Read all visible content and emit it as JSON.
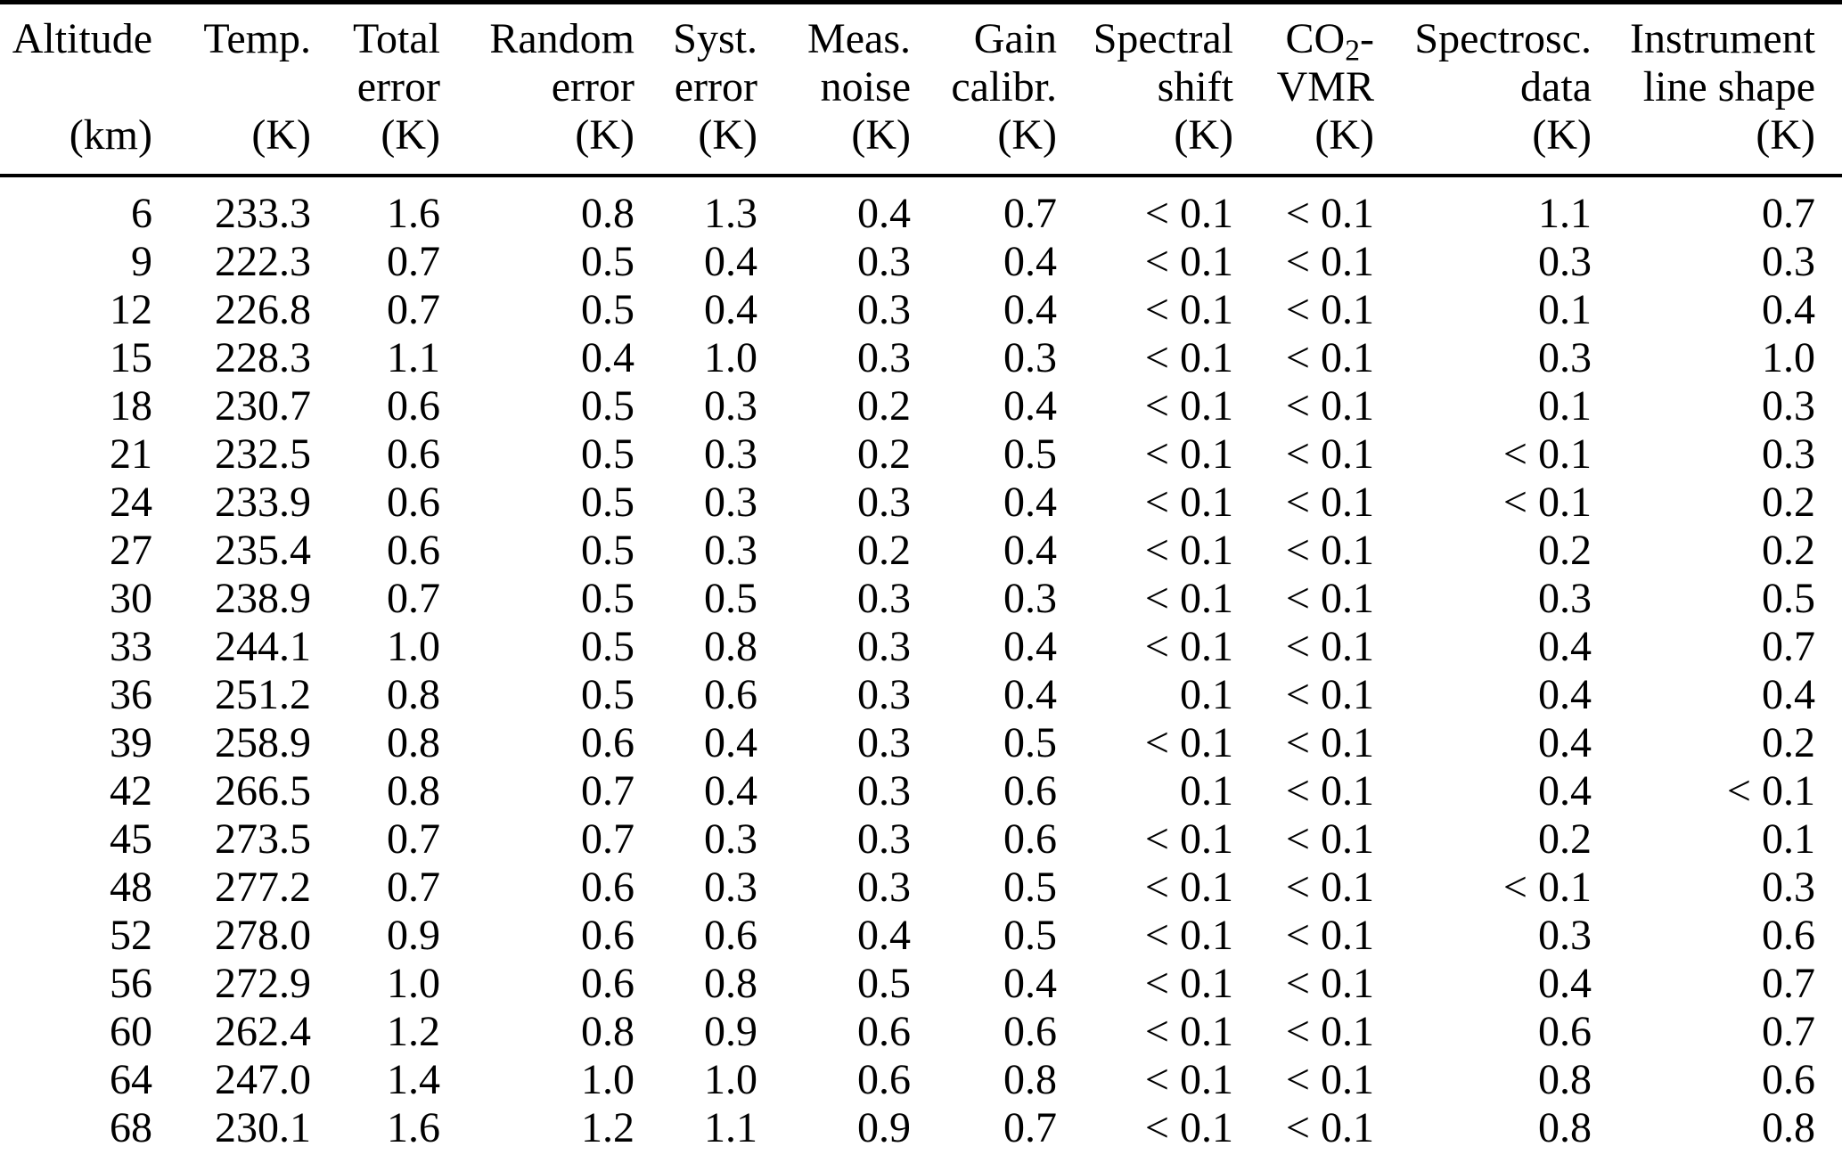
{
  "page": {
    "background_color": "#ffffff",
    "text_color": "#000000",
    "rule_color": "#000000"
  },
  "table": {
    "columns": [
      {
        "id": "altitude",
        "line1": "Altitude",
        "line2": "",
        "line3": "(km)"
      },
      {
        "id": "temp",
        "line1": "Temp.",
        "line2": "",
        "line3": "(K)"
      },
      {
        "id": "total-error",
        "line1": "Total",
        "line2": "error",
        "line3": "(K)"
      },
      {
        "id": "random-error",
        "line1": "Random",
        "line2": "error",
        "line3": "(K)"
      },
      {
        "id": "syst-error",
        "line1": "Syst.",
        "line2": "error",
        "line3": "(K)"
      },
      {
        "id": "meas-noise",
        "line1": "Meas.",
        "line2": "noise",
        "line3": "(K)"
      },
      {
        "id": "gain-calibr",
        "line1": "Gain",
        "line2": "calibr.",
        "line3": "(K)"
      },
      {
        "id": "spectral-shift",
        "line1": "Spectral",
        "line2": "shift",
        "line3": "(K)"
      },
      {
        "id": "co2-vmr",
        "line1_pre": "CO",
        "line1_sub": "2",
        "line1_post": "-",
        "line2": "VMR",
        "line3": "(K)"
      },
      {
        "id": "spectrosc-data",
        "line1": "Spectrosc.",
        "line2": "data",
        "line3": "(K)"
      },
      {
        "id": "instrument-line-shape",
        "line1": "Instrument",
        "line2": "line shape",
        "line3": "(K)"
      }
    ],
    "rows": [
      [
        "6",
        "233.3",
        "1.6",
        "0.8",
        "1.3",
        "0.4",
        "0.7",
        "< 0.1",
        "< 0.1",
        "1.1",
        "0.7"
      ],
      [
        "9",
        "222.3",
        "0.7",
        "0.5",
        "0.4",
        "0.3",
        "0.4",
        "< 0.1",
        "< 0.1",
        "0.3",
        "0.3"
      ],
      [
        "12",
        "226.8",
        "0.7",
        "0.5",
        "0.4",
        "0.3",
        "0.4",
        "< 0.1",
        "< 0.1",
        "0.1",
        "0.4"
      ],
      [
        "15",
        "228.3",
        "1.1",
        "0.4",
        "1.0",
        "0.3",
        "0.3",
        "< 0.1",
        "< 0.1",
        "0.3",
        "1.0"
      ],
      [
        "18",
        "230.7",
        "0.6",
        "0.5",
        "0.3",
        "0.2",
        "0.4",
        "< 0.1",
        "< 0.1",
        "0.1",
        "0.3"
      ],
      [
        "21",
        "232.5",
        "0.6",
        "0.5",
        "0.3",
        "0.2",
        "0.5",
        "< 0.1",
        "< 0.1",
        "< 0.1",
        "0.3"
      ],
      [
        "24",
        "233.9",
        "0.6",
        "0.5",
        "0.3",
        "0.3",
        "0.4",
        "< 0.1",
        "< 0.1",
        "< 0.1",
        "0.2"
      ],
      [
        "27",
        "235.4",
        "0.6",
        "0.5",
        "0.3",
        "0.2",
        "0.4",
        "< 0.1",
        "< 0.1",
        "0.2",
        "0.2"
      ],
      [
        "30",
        "238.9",
        "0.7",
        "0.5",
        "0.5",
        "0.3",
        "0.3",
        "< 0.1",
        "< 0.1",
        "0.3",
        "0.5"
      ],
      [
        "33",
        "244.1",
        "1.0",
        "0.5",
        "0.8",
        "0.3",
        "0.4",
        "< 0.1",
        "< 0.1",
        "0.4",
        "0.7"
      ],
      [
        "36",
        "251.2",
        "0.8",
        "0.5",
        "0.6",
        "0.3",
        "0.4",
        "0.1",
        "< 0.1",
        "0.4",
        "0.4"
      ],
      [
        "39",
        "258.9",
        "0.8",
        "0.6",
        "0.4",
        "0.3",
        "0.5",
        "< 0.1",
        "< 0.1",
        "0.4",
        "0.2"
      ],
      [
        "42",
        "266.5",
        "0.8",
        "0.7",
        "0.4",
        "0.3",
        "0.6",
        "0.1",
        "< 0.1",
        "0.4",
        "< 0.1"
      ],
      [
        "45",
        "273.5",
        "0.7",
        "0.7",
        "0.3",
        "0.3",
        "0.6",
        "< 0.1",
        "< 0.1",
        "0.2",
        "0.1"
      ],
      [
        "48",
        "277.2",
        "0.7",
        "0.6",
        "0.3",
        "0.3",
        "0.5",
        "< 0.1",
        "< 0.1",
        "< 0.1",
        "0.3"
      ],
      [
        "52",
        "278.0",
        "0.9",
        "0.6",
        "0.6",
        "0.4",
        "0.5",
        "< 0.1",
        "< 0.1",
        "0.3",
        "0.6"
      ],
      [
        "56",
        "272.9",
        "1.0",
        "0.6",
        "0.8",
        "0.5",
        "0.4",
        "< 0.1",
        "< 0.1",
        "0.4",
        "0.7"
      ],
      [
        "60",
        "262.4",
        "1.2",
        "0.8",
        "0.9",
        "0.6",
        "0.6",
        "< 0.1",
        "< 0.1",
        "0.6",
        "0.7"
      ],
      [
        "64",
        "247.0",
        "1.4",
        "1.0",
        "1.0",
        "0.6",
        "0.8",
        "< 0.1",
        "< 0.1",
        "0.8",
        "0.6"
      ],
      [
        "68",
        "230.1",
        "1.6",
        "1.2",
        "1.1",
        "0.9",
        "0.7",
        "< 0.1",
        "< 0.1",
        "0.8",
        "0.8"
      ]
    ]
  }
}
